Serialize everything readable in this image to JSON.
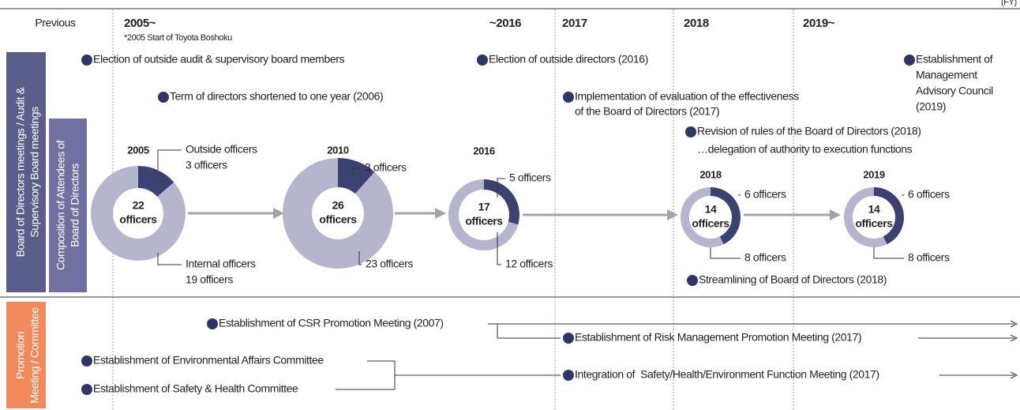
{
  "header": {
    "fy": "(FY)",
    "columns": [
      {
        "label": "Previous"
      },
      {
        "label": "2005~",
        "note": "*2005 Start of Toyota Boshoku"
      },
      {
        "label": "~2016"
      },
      {
        "label": "2017"
      },
      {
        "label": "2018"
      },
      {
        "label": "2019~"
      }
    ]
  },
  "sections": [
    {
      "label": [
        "Board of Directors meetings / Audit &",
        "Supervisory Board meetings"
      ],
      "sublabel": [
        "Composition of Attendees of",
        "Board of Directors"
      ]
    },
    {
      "label": [
        "Promotion",
        "Meeting / Committee"
      ]
    }
  ],
  "events": [
    {
      "lines": [
        "Election of outside audit & supervisory board members"
      ]
    },
    {
      "lines": [
        "Election of outside directors (2016)"
      ]
    },
    {
      "lines": [
        "Establishment of",
        "Management",
        "Advisory Council",
        "(2019)"
      ]
    },
    {
      "lines": [
        "Term of directors shortened to one year (2006)"
      ]
    },
    {
      "lines": [
        "Implementation of evaluation of the effectiveness",
        "of the Board of Directors (2017)"
      ]
    },
    {
      "lines": [
        "Revision of rules of the Board of Directors (2018)",
        "…delegation of authority to execution functions"
      ]
    },
    {
      "lines": [
        "Streamlining of Board of Directors (2018)"
      ]
    }
  ],
  "donuts": [
    {
      "year": "2005",
      "total": 22,
      "unit": "officers",
      "segments": [
        {
          "name": "Outside officers",
          "value": 3,
          "value_label": "3 officers"
        },
        {
          "name": "Internal officers",
          "value": 19,
          "value_label": "19 officers"
        }
      ]
    },
    {
      "year": "2010",
      "total": 26,
      "unit": "officers",
      "segments": [
        {
          "value": 3,
          "value_label": "3 officers"
        },
        {
          "value": 23,
          "value_label": "23 officers"
        }
      ]
    },
    {
      "year": "2016",
      "total": 17,
      "unit": "officers",
      "segments": [
        {
          "value": 5,
          "value_label": "5 officers"
        },
        {
          "value": 12,
          "value_label": "12 officers"
        }
      ]
    },
    {
      "year": "2018",
      "total": 14,
      "unit": "officers",
      "segments": [
        {
          "value": 6,
          "value_label": "6 officers"
        },
        {
          "value": 8,
          "value_label": "8 officers"
        }
      ]
    },
    {
      "year": "2019",
      "total": 14,
      "unit": "officers",
      "segments": [
        {
          "value": 6,
          "value_label": "6 officers"
        },
        {
          "value": 8,
          "value_label": "8 officers"
        }
      ]
    }
  ],
  "committees": [
    "Establishment of CSR Promotion Meeting (2007)",
    "Establishment of Risk Management Promotion Meeting (2017)",
    "Establishment of Environmental Affairs Committee",
    "Establishment of Safety & Health Committee",
    "Integration of  Safety/Health/Environment Function Meeting (2017)"
  ]
}
